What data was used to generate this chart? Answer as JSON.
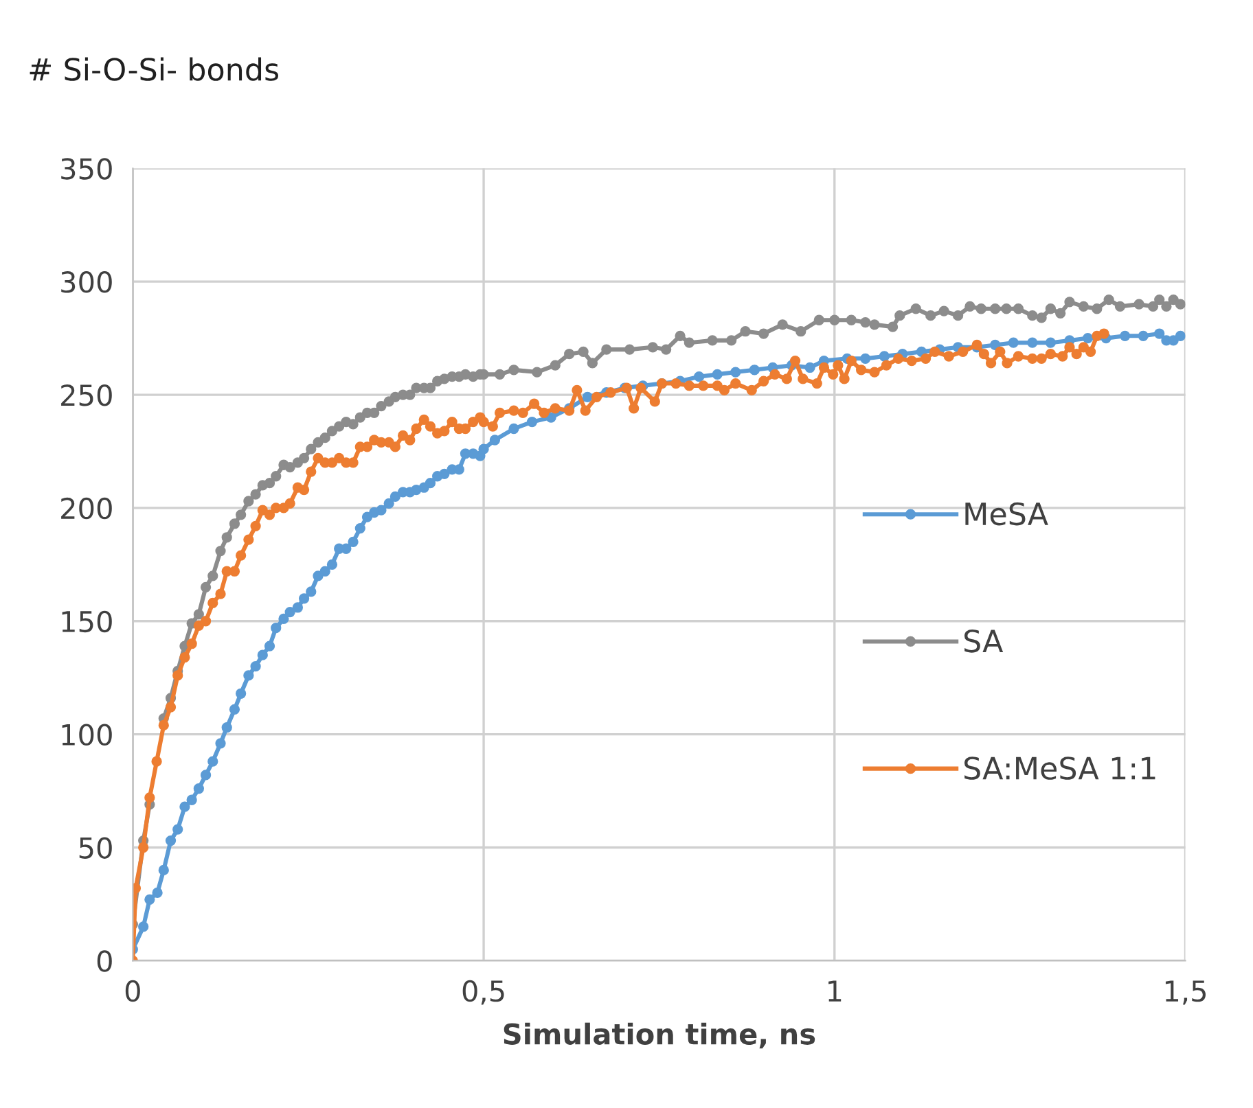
{
  "chart_data": {
    "type": "line",
    "title": "# Si-O-Si- bonds",
    "xlabel": "Simulation time, ns",
    "xlim": [
      0,
      1.5
    ],
    "xticks": [
      0,
      {
        "value": 0.5,
        "label": "0,5"
      },
      1,
      {
        "value": 1.5,
        "label": "1,5"
      }
    ],
    "ylim": [
      0,
      350
    ],
    "yticks": [
      0,
      50,
      100,
      150,
      200,
      250,
      300,
      350
    ],
    "grid": true,
    "legend": "right",
    "marker": "circle",
    "line_style": "solid",
    "series": [
      {
        "name": "MeSA",
        "color": "#5b9bd5",
        "x": [
          0,
          0.015,
          0.024,
          0.035,
          0.044,
          0.054,
          0.064,
          0.074,
          0.084,
          0.094,
          0.104,
          0.114,
          0.125,
          0.134,
          0.145,
          0.154,
          0.165,
          0.175,
          0.185,
          0.195,
          0.204,
          0.215,
          0.224,
          0.235,
          0.244,
          0.254,
          0.264,
          0.274,
          0.284,
          0.294,
          0.304,
          0.314,
          0.324,
          0.334,
          0.344,
          0.354,
          0.365,
          0.374,
          0.385,
          0.395,
          0.404,
          0.415,
          0.424,
          0.434,
          0.444,
          0.455,
          0.465,
          0.474,
          0.485,
          0.495,
          0.5,
          0.516,
          0.543,
          0.569,
          0.596,
          0.622,
          0.648,
          0.675,
          0.701,
          0.727,
          0.754,
          0.78,
          0.807,
          0.833,
          0.859,
          0.886,
          0.912,
          0.939,
          0.965,
          0.985,
          1.018,
          1.044,
          1.071,
          1.097,
          1.124,
          1.15,
          1.176,
          1.203,
          1.229,
          1.255,
          1.282,
          1.308,
          1.335,
          1.361,
          1.387,
          1.414,
          1.44,
          1.463,
          1.473,
          1.483,
          1.493
        ],
        "values": [
          5,
          15,
          27,
          30,
          40,
          53,
          58,
          68,
          71,
          76,
          82,
          88,
          96,
          103,
          111,
          118,
          126,
          130,
          135,
          139,
          147,
          151,
          154,
          156,
          160,
          163,
          170,
          172,
          175,
          182,
          182,
          185,
          191,
          196,
          198,
          199,
          202,
          205,
          207,
          207,
          208,
          209,
          211,
          214,
          215,
          217,
          217,
          224,
          224,
          223,
          226,
          230,
          235,
          238,
          240,
          244,
          249,
          251,
          253,
          254,
          255,
          256,
          258,
          259,
          260,
          261,
          262,
          263,
          262,
          265,
          266,
          266,
          267,
          268,
          269,
          270,
          271,
          271,
          272,
          273,
          273,
          273,
          274,
          275,
          275,
          276,
          276,
          277,
          274,
          274,
          276
        ]
      },
      {
        "name": "SA",
        "color": "#8c8c8c",
        "x": [
          0,
          0.015,
          0.024,
          0.034,
          0.044,
          0.054,
          0.064,
          0.074,
          0.084,
          0.094,
          0.104,
          0.114,
          0.125,
          0.134,
          0.145,
          0.154,
          0.165,
          0.175,
          0.185,
          0.195,
          0.204,
          0.215,
          0.224,
          0.235,
          0.244,
          0.254,
          0.264,
          0.274,
          0.284,
          0.294,
          0.304,
          0.314,
          0.324,
          0.334,
          0.344,
          0.354,
          0.365,
          0.374,
          0.385,
          0.395,
          0.404,
          0.415,
          0.424,
          0.434,
          0.444,
          0.455,
          0.465,
          0.474,
          0.485,
          0.495,
          0.5,
          0.523,
          0.543,
          0.576,
          0.602,
          0.622,
          0.642,
          0.655,
          0.675,
          0.708,
          0.741,
          0.76,
          0.78,
          0.793,
          0.826,
          0.853,
          0.873,
          0.899,
          0.926,
          0.952,
          0.978,
          1.0,
          1.024,
          1.044,
          1.057,
          1.083,
          1.093,
          1.116,
          1.137,
          1.156,
          1.176,
          1.193,
          1.209,
          1.229,
          1.245,
          1.262,
          1.282,
          1.295,
          1.308,
          1.322,
          1.335,
          1.355,
          1.374,
          1.391,
          1.407,
          1.434,
          1.454,
          1.463,
          1.473,
          1.483,
          1.493
        ],
        "values": [
          16,
          53,
          69,
          null,
          107,
          116,
          128,
          139,
          149,
          153,
          165,
          170,
          181,
          187,
          193,
          197,
          203,
          206,
          210,
          211,
          214,
          219,
          218,
          220,
          222,
          226,
          229,
          231,
          234,
          236,
          238,
          237,
          240,
          242,
          242,
          245,
          247,
          249,
          250,
          250,
          253,
          253,
          253,
          256,
          257,
          258,
          258,
          259,
          258,
          259,
          259,
          259,
          261,
          260,
          263,
          268,
          269,
          264,
          270,
          270,
          271,
          270,
          276,
          273,
          274,
          274,
          278,
          277,
          281,
          278,
          283,
          283,
          283,
          282,
          281,
          280,
          285,
          288,
          285,
          287,
          285,
          289,
          288,
          288,
          288,
          288,
          285,
          284,
          288,
          286,
          291,
          289,
          288,
          292,
          289,
          290,
          289,
          292,
          289,
          292,
          290
        ]
      },
      {
        "name": "SA:MeSA 1:1",
        "color": "#ed7d31",
        "x": [
          0,
          0.004,
          0.015,
          0.024,
          0.034,
          0.044,
          0.054,
          0.064,
          0.074,
          0.084,
          0.094,
          0.104,
          0.114,
          0.125,
          0.134,
          0.145,
          0.154,
          0.165,
          0.175,
          0.185,
          0.195,
          0.204,
          0.215,
          0.224,
          0.235,
          0.244,
          0.254,
          0.264,
          0.274,
          0.284,
          0.294,
          0.304,
          0.314,
          0.324,
          0.334,
          0.344,
          0.354,
          0.365,
          0.374,
          0.385,
          0.395,
          0.404,
          0.415,
          0.424,
          0.434,
          0.444,
          0.455,
          0.465,
          0.474,
          0.485,
          0.495,
          0.5,
          0.513,
          0.523,
          0.543,
          0.556,
          0.572,
          0.586,
          0.602,
          0.622,
          0.633,
          0.645,
          0.661,
          0.681,
          0.704,
          0.714,
          0.724,
          0.744,
          0.754,
          0.774,
          0.793,
          0.813,
          0.833,
          0.843,
          0.859,
          0.882,
          0.899,
          0.915,
          0.932,
          0.944,
          0.955,
          0.975,
          0.985,
          0.998,
          1.005,
          1.014,
          1.024,
          1.038,
          1.057,
          1.074,
          1.091,
          1.11,
          1.13,
          1.143,
          1.163,
          1.183,
          1.203,
          1.213,
          1.223,
          1.236,
          1.246,
          1.262,
          1.282,
          1.295,
          1.308,
          1.325,
          1.335,
          1.345,
          1.355,
          1.365,
          1.374,
          1.384
        ],
        "values": [
          0,
          32,
          50,
          72,
          88,
          104,
          112,
          126,
          134,
          140,
          148,
          150,
          158,
          162,
          172,
          172,
          179,
          186,
          192,
          199,
          197,
          200,
          200,
          202,
          209,
          208,
          216,
          222,
          220,
          220,
          222,
          220,
          220,
          227,
          227,
          230,
          229,
          229,
          227,
          232,
          230,
          235,
          239,
          236,
          233,
          234,
          238,
          235,
          235,
          238,
          240,
          238,
          236,
          242,
          243,
          242,
          246,
          242,
          244,
          243,
          252,
          243,
          249,
          251,
          253,
          244,
          253,
          247,
          255,
          255,
          254,
          254,
          254,
          252,
          255,
          252,
          256,
          259,
          257,
          265,
          257,
          255,
          262,
          259,
          263,
          257,
          265,
          261,
          260,
          263,
          266,
          265,
          266,
          269,
          267,
          269,
          272,
          268,
          264,
          269,
          264,
          267,
          266,
          266,
          268,
          267,
          271,
          268,
          271,
          269,
          276,
          277
        ]
      }
    ]
  }
}
